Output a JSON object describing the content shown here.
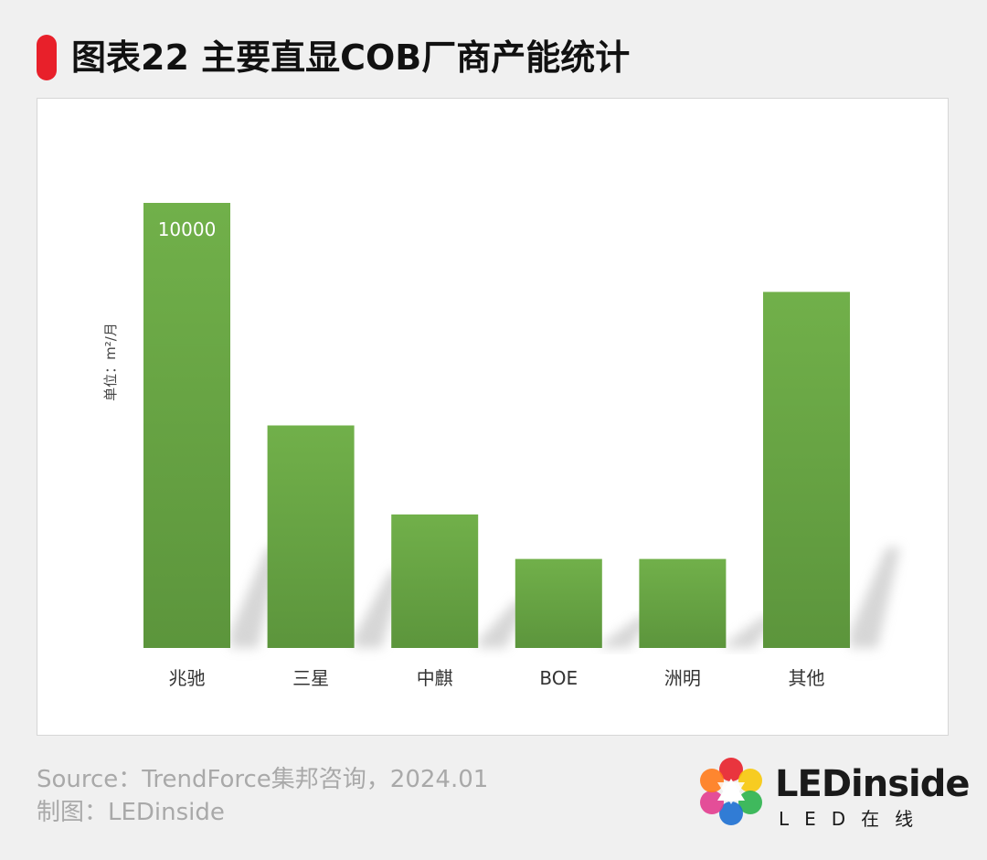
{
  "title": "图表22 主要直显COB厂商产能统计",
  "source": "Source：TrendForce集邦咨询，2024.01",
  "maker": "制图：LEDinside",
  "logo": {
    "name": "LEDinside",
    "sub": "LED在线"
  },
  "colors": {
    "bar": "#6aa845",
    "bar_light": "#71b04a",
    "bar_dark": "#5c953c",
    "accent": "#e8202a"
  },
  "chart_data": {
    "type": "bar",
    "categories": [
      "兆驰",
      "三星",
      "中麒",
      "BOE",
      "洲明",
      "其他"
    ],
    "values": [
      10000,
      5000,
      3000,
      2000,
      2000,
      8000
    ],
    "data_labels": [
      "10000",
      "",
      "",
      "",
      "",
      ""
    ],
    "ylabel": "单位：m²/月",
    "ylim": [
      0,
      10000
    ],
    "grid": false,
    "legend": "none"
  }
}
